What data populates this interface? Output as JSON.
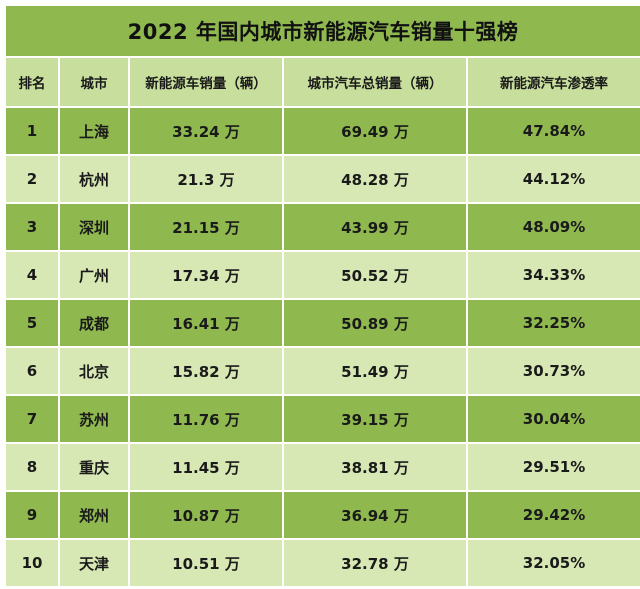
{
  "title": "2022 年国内城市新能源汽车销量十强榜",
  "headers": [
    "排名",
    "城市",
    "新能源车销量（辆）",
    "城市汽车总销量（辆）",
    "新能源汽车渗透率"
  ],
  "rows": [
    {
      "rank": "1",
      "city": "上海",
      "nev_sales": "33.24 万",
      "total_sales": "69.49 万",
      "penetration": "47.84%"
    },
    {
      "rank": "2",
      "city": "杭州",
      "nev_sales": "21.3 万",
      "total_sales": "48.28 万",
      "penetration": "44.12%"
    },
    {
      "rank": "3",
      "city": "深圳",
      "nev_sales": "21.15 万",
      "total_sales": "43.99 万",
      "penetration": "48.09%"
    },
    {
      "rank": "4",
      "city": "广州",
      "nev_sales": "17.34 万",
      "total_sales": "50.52 万",
      "penetration": "34.33%"
    },
    {
      "rank": "5",
      "city": "成都",
      "nev_sales": "16.41 万",
      "total_sales": "50.89 万",
      "penetration": "32.25%"
    },
    {
      "rank": "6",
      "city": "北京",
      "nev_sales": "15.82 万",
      "total_sales": "51.49 万",
      "penetration": "30.73%"
    },
    {
      "rank": "7",
      "city": "苏州",
      "nev_sales": "11.76 万",
      "total_sales": "39.15 万",
      "penetration": "30.04%"
    },
    {
      "rank": "8",
      "city": "重庆",
      "nev_sales": "11.45 万",
      "total_sales": "38.81 万",
      "penetration": "29.51%"
    },
    {
      "rank": "9",
      "city": "郑州",
      "nev_sales": "10.87 万",
      "total_sales": "36.94 万",
      "penetration": "29.42%"
    },
    {
      "rank": "10",
      "city": "天津",
      "nev_sales": "10.51 万",
      "total_sales": "32.78 万",
      "penetration": "32.05%"
    }
  ],
  "colors": {
    "title_bg": "#8fb94f",
    "header_bg": "#c8de9c",
    "row_dark": "#8fb94f",
    "row_light": "#d7e8b5",
    "border": "#ffffff"
  }
}
